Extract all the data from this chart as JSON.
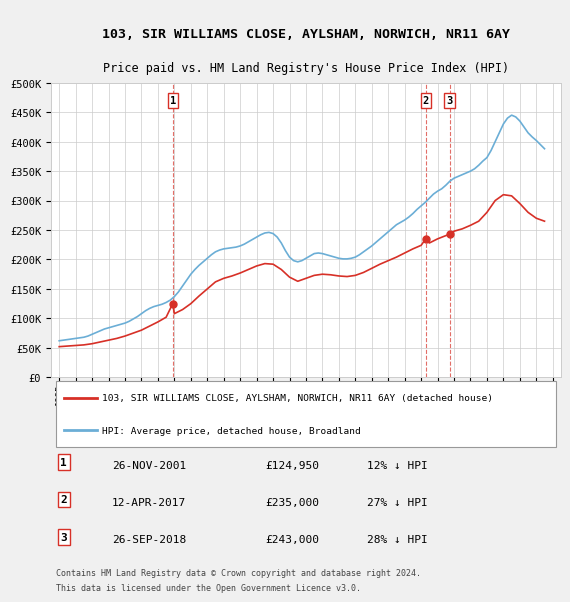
{
  "title": "103, SIR WILLIAMS CLOSE, AYLSHAM, NORWICH, NR11 6AY",
  "subtitle": "Price paid vs. HM Land Registry's House Price Index (HPI)",
  "legend_line1": "103, SIR WILLIAMS CLOSE, AYLSHAM, NORWICH, NR11 6AY (detached house)",
  "legend_line2": "HPI: Average price, detached house, Broadland",
  "footer1": "Contains HM Land Registry data © Crown copyright and database right 2024.",
  "footer2": "This data is licensed under the Open Government Licence v3.0.",
  "table_rows": [
    {
      "num": "1",
      "date": "26-NOV-2001",
      "price": "£124,950",
      "hpi": "12% ↓ HPI"
    },
    {
      "num": "2",
      "date": "12-APR-2017",
      "price": "£235,000",
      "hpi": "27% ↓ HPI"
    },
    {
      "num": "3",
      "date": "26-SEP-2018",
      "price": "£243,000",
      "hpi": "28% ↓ HPI"
    }
  ],
  "sale_points": [
    {
      "year": 2001.9,
      "value": 124950
    },
    {
      "year": 2017.28,
      "value": 235000
    },
    {
      "year": 2018.73,
      "value": 243000
    }
  ],
  "sale_labels": [
    "1",
    "2",
    "3"
  ],
  "ylim": [
    0,
    500000
  ],
  "yticks": [
    0,
    50000,
    100000,
    150000,
    200000,
    250000,
    300000,
    350000,
    400000,
    450000,
    500000
  ],
  "hpi_color": "#6baed6",
  "price_color": "#d73027",
  "vline_color": "#d73027",
  "background_color": "#f0f0f0",
  "plot_bg_color": "#ffffff",
  "hpi_data_x": [
    1995,
    1995.25,
    1995.5,
    1995.75,
    1996,
    1996.25,
    1996.5,
    1996.75,
    1997,
    1997.25,
    1997.5,
    1997.75,
    1998,
    1998.25,
    1998.5,
    1998.75,
    1999,
    1999.25,
    1999.5,
    1999.75,
    2000,
    2000.25,
    2000.5,
    2000.75,
    2001,
    2001.25,
    2001.5,
    2001.75,
    2002,
    2002.25,
    2002.5,
    2002.75,
    2003,
    2003.25,
    2003.5,
    2003.75,
    2004,
    2004.25,
    2004.5,
    2004.75,
    2005,
    2005.25,
    2005.5,
    2005.75,
    2006,
    2006.25,
    2006.5,
    2006.75,
    2007,
    2007.25,
    2007.5,
    2007.75,
    2008,
    2008.25,
    2008.5,
    2008.75,
    2009,
    2009.25,
    2009.5,
    2009.75,
    2010,
    2010.25,
    2010.5,
    2010.75,
    2011,
    2011.25,
    2011.5,
    2011.75,
    2012,
    2012.25,
    2012.5,
    2012.75,
    2013,
    2013.25,
    2013.5,
    2013.75,
    2014,
    2014.25,
    2014.5,
    2014.75,
    2015,
    2015.25,
    2015.5,
    2015.75,
    2016,
    2016.25,
    2016.5,
    2016.75,
    2017,
    2017.25,
    2017.5,
    2017.75,
    2018,
    2018.25,
    2018.5,
    2018.75,
    2019,
    2019.25,
    2019.5,
    2019.75,
    2020,
    2020.25,
    2020.5,
    2020.75,
    2021,
    2021.25,
    2021.5,
    2021.75,
    2022,
    2022.25,
    2022.5,
    2022.75,
    2023,
    2023.25,
    2023.5,
    2023.75,
    2024,
    2024.25,
    2024.5
  ],
  "hpi_data_y": [
    62000,
    63000,
    64000,
    65000,
    66000,
    67000,
    68000,
    70000,
    73000,
    76000,
    79000,
    82000,
    84000,
    86000,
    88000,
    90000,
    92000,
    95000,
    99000,
    103000,
    108000,
    113000,
    117000,
    120000,
    122000,
    124000,
    127000,
    131000,
    137000,
    145000,
    155000,
    165000,
    175000,
    183000,
    190000,
    196000,
    202000,
    208000,
    213000,
    216000,
    218000,
    219000,
    220000,
    221000,
    223000,
    226000,
    230000,
    234000,
    238000,
    242000,
    245000,
    246000,
    244000,
    238000,
    228000,
    215000,
    204000,
    198000,
    196000,
    198000,
    202000,
    206000,
    210000,
    211000,
    210000,
    208000,
    206000,
    204000,
    202000,
    201000,
    201000,
    202000,
    204000,
    208000,
    213000,
    218000,
    223000,
    229000,
    235000,
    241000,
    247000,
    253000,
    259000,
    263000,
    267000,
    272000,
    278000,
    285000,
    291000,
    297000,
    304000,
    311000,
    316000,
    320000,
    326000,
    333000,
    338000,
    341000,
    344000,
    347000,
    350000,
    354000,
    360000,
    367000,
    373000,
    385000,
    400000,
    415000,
    430000,
    440000,
    445000,
    442000,
    435000,
    425000,
    415000,
    408000,
    402000,
    395000,
    388000
  ],
  "price_data_x": [
    1995,
    1995.5,
    1996,
    1996.5,
    1997,
    1997.5,
    1998,
    1998.5,
    1999,
    1999.5,
    2000,
    2000.5,
    2001,
    2001.5,
    2001.9,
    2002,
    2002.5,
    2003,
    2003.5,
    2004,
    2004.5,
    2005,
    2005.5,
    2006,
    2006.5,
    2007,
    2007.5,
    2008,
    2008.5,
    2009,
    2009.5,
    2010,
    2010.5,
    2011,
    2011.5,
    2012,
    2012.5,
    2013,
    2013.5,
    2014,
    2014.5,
    2015,
    2015.5,
    2016,
    2016.5,
    2017,
    2017.28,
    2017.5,
    2018,
    2018.73,
    2019,
    2019.5,
    2020,
    2020.5,
    2021,
    2021.5,
    2022,
    2022.5,
    2023,
    2023.5,
    2024,
    2024.5
  ],
  "price_data_y": [
    52000,
    53000,
    54000,
    55000,
    57000,
    60000,
    63000,
    66000,
    70000,
    75000,
    80000,
    87000,
    94000,
    102000,
    124950,
    108000,
    115000,
    125000,
    138000,
    150000,
    162000,
    168000,
    172000,
    177000,
    183000,
    189000,
    193000,
    192000,
    183000,
    170000,
    163000,
    168000,
    173000,
    175000,
    174000,
    172000,
    171000,
    173000,
    178000,
    185000,
    192000,
    198000,
    204000,
    211000,
    218000,
    224000,
    235000,
    228000,
    235000,
    243000,
    248000,
    252000,
    258000,
    265000,
    280000,
    300000,
    310000,
    308000,
    295000,
    280000,
    270000,
    265000
  ]
}
